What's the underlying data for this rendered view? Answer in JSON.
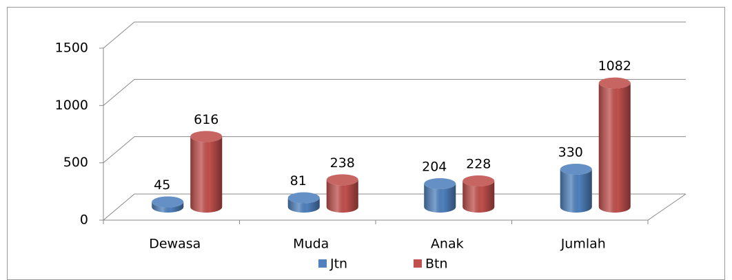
{
  "chart_data": {
    "type": "bar3d",
    "categories": [
      "Dewasa",
      "Muda",
      "Anak",
      "Jumlah"
    ],
    "series": [
      {
        "name": "Jtn",
        "color": "#4f81bd",
        "values": [
          45,
          81,
          204,
          330
        ]
      },
      {
        "name": "Btn",
        "color": "#c0504d",
        "values": [
          616,
          238,
          228,
          1082
        ]
      }
    ],
    "ylim": [
      0,
      1500
    ],
    "yticks": [
      0,
      500,
      1000,
      1500
    ],
    "grid": true,
    "legend": "bottom"
  }
}
